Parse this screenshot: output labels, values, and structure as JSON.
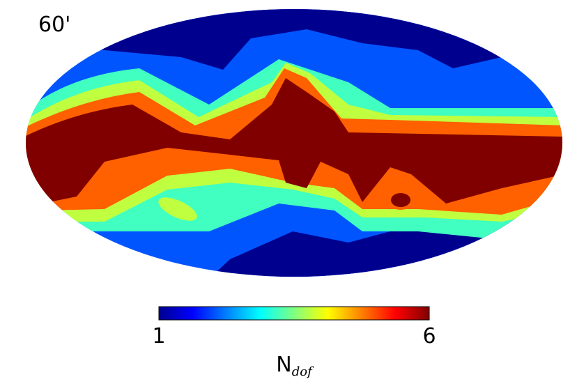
{
  "chart_data": {
    "type": "map",
    "projection": "mollweide",
    "title": "60'",
    "colorbar": {
      "colormap": "jet",
      "lim": [
        1,
        6
      ],
      "ticks": [
        1,
        6
      ],
      "label": "N",
      "label_subscript": "dof"
    }
  }
}
